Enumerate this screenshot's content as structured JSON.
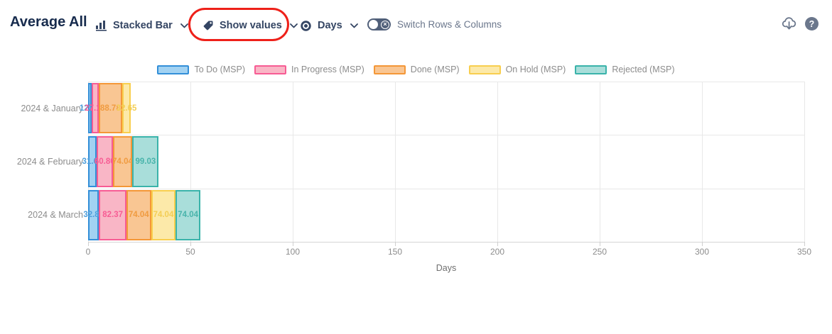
{
  "header": {
    "title": "Average All",
    "chart_type_label": "Stacked Bar",
    "show_values_label": "Show values",
    "measure_label": "Days",
    "switch_label": "Switch Rows & Columns"
  },
  "icons": {
    "chart_type": "bar-chart-icon",
    "show_values": "tag-icon",
    "measure": "eye-icon",
    "export": "cloud-download-icon",
    "help": "question-mark-icon",
    "help_glyph": "?",
    "toggle_off_glyph": "×"
  },
  "colors": {
    "title_text": "#172B4D",
    "toolbar_text": "#344563",
    "muted_text": "#6B778C",
    "axis_text": "#8C8C8C",
    "grid": "#E8E8E8",
    "axis_line": "#D5D5D5",
    "annotation": "#EE2019"
  },
  "chart_data": {
    "type": "bar",
    "orientation": "horizontal-stacked",
    "title": "Average All",
    "categories": [
      "2024 & January",
      "2024 & February",
      "2024 & March"
    ],
    "series": [
      {
        "name": "To Do (MSP)",
        "values": [
          12.2,
          31.66,
          32.88
        ],
        "fill": "#A2D2F2",
        "border": "#338FD8",
        "label_color": "#4E9FDC"
      },
      {
        "name": "In Progress (MSP)",
        "values": [
          27.1,
          60.8,
          82.37
        ],
        "fill": "#F9B6C6",
        "border": "#F75C94",
        "label_color": "#F75C94"
      },
      {
        "name": "Done (MSP)",
        "values": [
          88.78,
          74.04,
          74.04
        ],
        "fill": "#F9C693",
        "border": "#F49737",
        "label_color": "#F09B40"
      },
      {
        "name": "On Hold (MSP)",
        "values": [
          32.65,
          0,
          74.04
        ],
        "fill": "#FCE9A9",
        "border": "#F8CE4E",
        "label_color": "#F3CE55"
      },
      {
        "name": "Rejected (MSP)",
        "values": [
          0,
          99.03,
          74.04
        ],
        "fill": "#A9DEDA",
        "border": "#3AB3AA",
        "label_color": "#49B4AB"
      }
    ],
    "xlabel": "Days",
    "xlim": [
      0,
      350
    ],
    "xticks": [
      0,
      50,
      100,
      150,
      200,
      250,
      300,
      350
    ],
    "value_decimals": 2,
    "grid": true,
    "legend_position": "top"
  }
}
